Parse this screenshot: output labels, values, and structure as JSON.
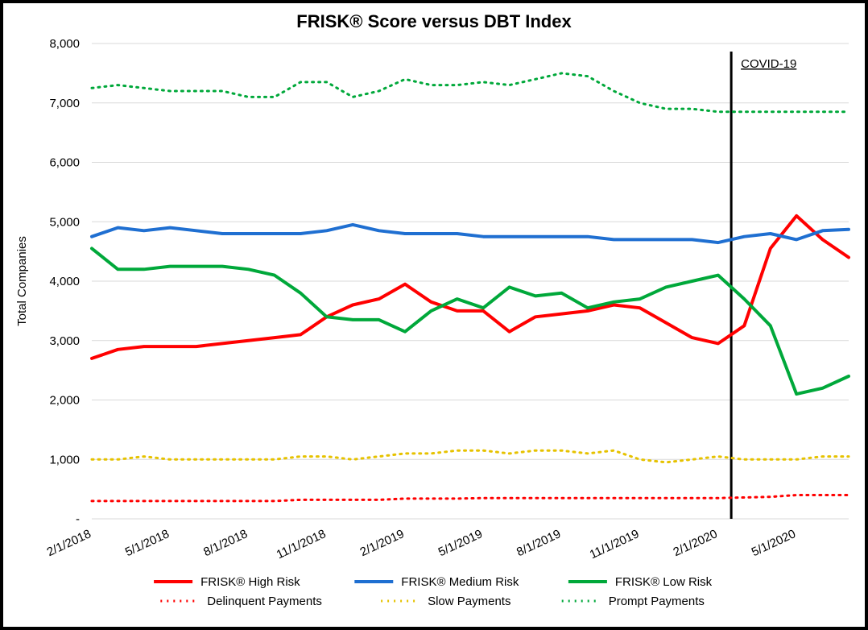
{
  "chart": {
    "type": "line",
    "title": "FRISK® Score versus DBT Index",
    "title_fontsize": 22,
    "title_fontweight": "bold",
    "background_color": "#ffffff",
    "border_color": "#000000",
    "ylabel": "Total Companies",
    "ylabel_fontsize": 15,
    "y_axis": {
      "min": 0,
      "max": 8000,
      "tick_step": 1000,
      "ticks": [
        0,
        1000,
        2000,
        3000,
        4000,
        5000,
        6000,
        7000,
        8000
      ],
      "tick_labels": [
        "-",
        "1,000",
        "2,000",
        "3,000",
        "4,000",
        "5,000",
        "6,000",
        "7,000",
        "8,000"
      ]
    },
    "x_axis": {
      "tick_labels": [
        "2/1/2018",
        "5/1/2018",
        "8/1/2018",
        "11/1/2018",
        "2/1/2019",
        "5/1/2019",
        "8/1/2019",
        "11/1/2019",
        "2/1/2020",
        "5/1/2020"
      ],
      "label_rotation_deg": -25,
      "n_points": 30
    },
    "grid": {
      "show_horizontal": true,
      "show_vertical": false,
      "color": "#d9d9d9",
      "width": 1
    },
    "annotation": {
      "label": "COVID-19",
      "x_index": 24.5,
      "fontsize": 15,
      "underline": true,
      "line_color": "#000000",
      "line_width": 3
    },
    "line_width_solid": 4,
    "line_width_dotted": 3,
    "dot_dash": "2,6",
    "series": [
      {
        "name": "FRISK® High Risk",
        "color": "#ff0000",
        "style": "solid",
        "values": [
          2700,
          2850,
          2900,
          2900,
          2900,
          2950,
          3000,
          3050,
          3100,
          3400,
          3600,
          3700,
          3950,
          3650,
          3500,
          3500,
          3150,
          3400,
          3450,
          3500,
          3600,
          3550,
          3300,
          3050,
          2950,
          3250,
          4550,
          5100,
          4700,
          4400
        ]
      },
      {
        "name": "FRISK® Medium Risk",
        "color": "#1f6fd1",
        "style": "solid",
        "values": [
          4750,
          4900,
          4850,
          4900,
          4850,
          4800,
          4800,
          4800,
          4800,
          4850,
          4950,
          4850,
          4800,
          4800,
          4800,
          4750,
          4750,
          4750,
          4750,
          4750,
          4700,
          4700,
          4700,
          4700,
          4650,
          4750,
          4800,
          4700,
          4850,
          4870
        ]
      },
      {
        "name": "FRISK® Low Risk",
        "color": "#00a83a",
        "style": "solid",
        "values": [
          4550,
          4200,
          4200,
          4250,
          4250,
          4250,
          4200,
          4100,
          3800,
          3400,
          3350,
          3350,
          3150,
          3500,
          3700,
          3550,
          3900,
          3750,
          3800,
          3550,
          3650,
          3700,
          3900,
          4000,
          4100,
          3700,
          3250,
          2100,
          2200,
          2400
        ]
      },
      {
        "name": "Delinquent Payments",
        "color": "#ff0000",
        "style": "dotted",
        "values": [
          300,
          300,
          300,
          300,
          300,
          300,
          300,
          300,
          320,
          320,
          320,
          320,
          340,
          340,
          340,
          350,
          350,
          350,
          350,
          350,
          350,
          350,
          350,
          350,
          350,
          360,
          370,
          400,
          400,
          400
        ]
      },
      {
        "name": "Slow Payments",
        "color": "#e6c200",
        "style": "dotted",
        "values": [
          1000,
          1000,
          1050,
          1000,
          1000,
          1000,
          1000,
          1000,
          1050,
          1050,
          1000,
          1050,
          1100,
          1100,
          1150,
          1150,
          1100,
          1150,
          1150,
          1100,
          1150,
          1000,
          950,
          1000,
          1050,
          1000,
          1000,
          1000,
          1050,
          1050
        ]
      },
      {
        "name": "Prompt Payments",
        "color": "#00a83a",
        "style": "dotted",
        "values": [
          7250,
          7300,
          7250,
          7200,
          7200,
          7200,
          7100,
          7100,
          7350,
          7350,
          7100,
          7200,
          7400,
          7300,
          7300,
          7350,
          7300,
          7400,
          7500,
          7450,
          7200,
          7000,
          6900,
          6900,
          6850,
          6850,
          6850,
          6850,
          6850,
          6850
        ]
      }
    ],
    "legend": {
      "rows": [
        [
          "FRISK® High Risk",
          "FRISK® Medium Risk",
          "FRISK® Low Risk"
        ],
        [
          "Delinquent Payments",
          "Slow Payments",
          "Prompt Payments"
        ]
      ],
      "fontsize": 15
    }
  }
}
